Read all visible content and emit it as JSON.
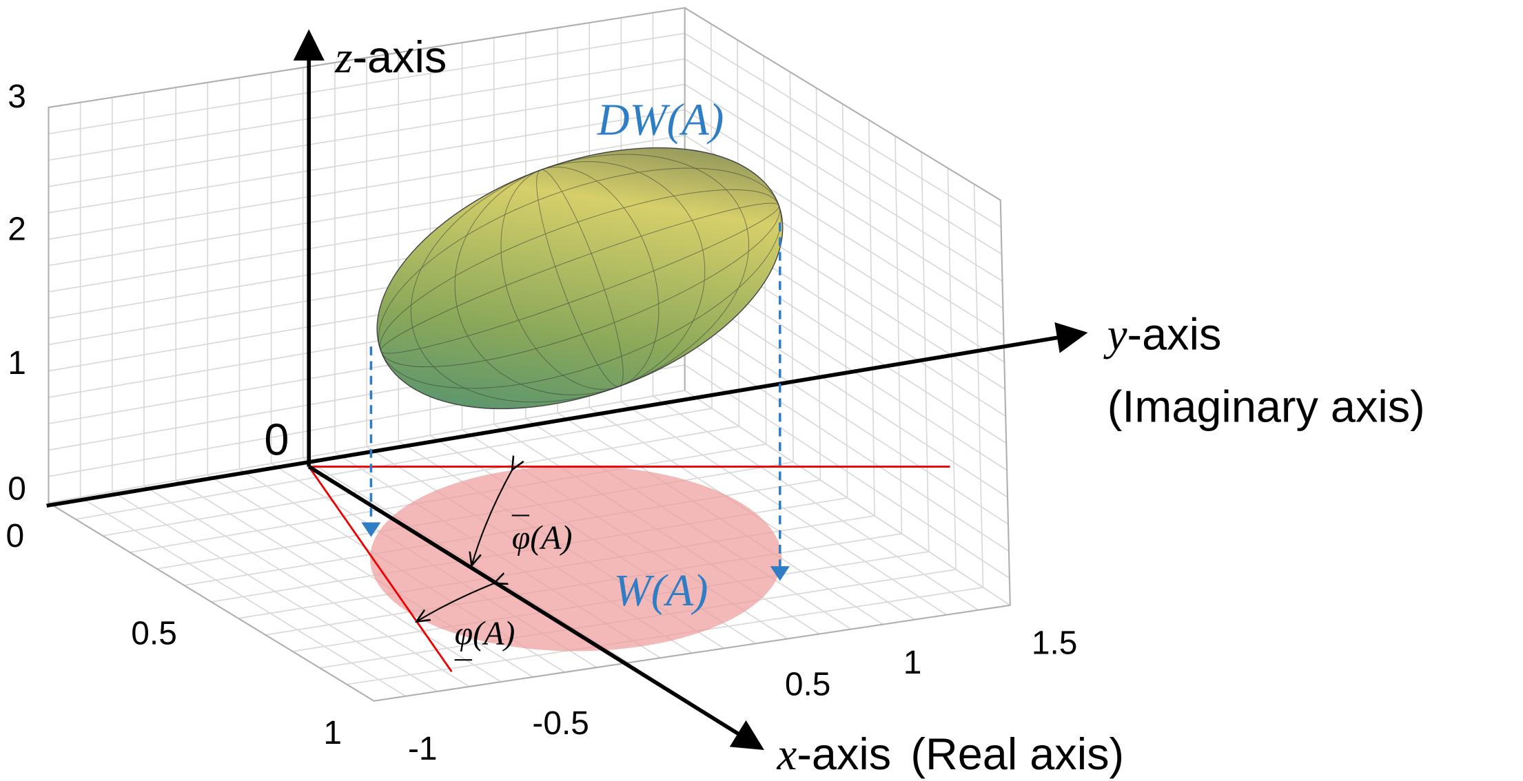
{
  "axes": {
    "z_axis": {
      "var": "z",
      "text": "-axis"
    },
    "y_axis": {
      "var": "y",
      "text": "-axis",
      "note": "(Imaginary axis)"
    },
    "x_axis": {
      "var": "x",
      "text": "-axis",
      "note": "(Real axis)"
    },
    "origin": "0"
  },
  "sets": {
    "dw": "DW(A)",
    "w": "W(A)",
    "phi_upper": "(A)",
    "phi_lower": "(A)"
  },
  "ticks": {
    "z": [
      "3",
      "2",
      "1",
      "0"
    ],
    "left": [
      "0",
      "0.5",
      "1"
    ],
    "bottom": [
      "-1",
      "-0.5",
      "0.5",
      "1",
      "1.5"
    ]
  }
}
